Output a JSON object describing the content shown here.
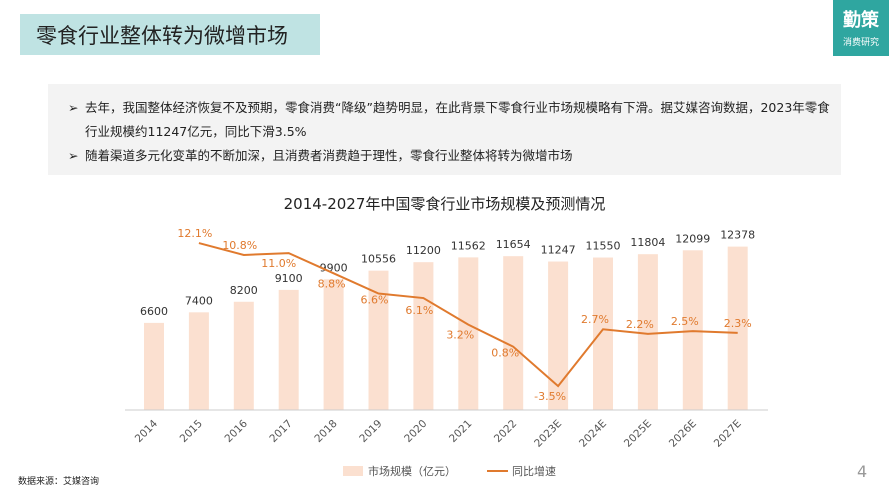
{
  "header": {
    "title": "零食行业整体转为微增市场",
    "logo_main": "勤策",
    "logo_sub": "消费研究"
  },
  "summary": {
    "bullets": [
      "去年，我国整体经济恢复不及预期，零食消费“降级”趋势明显，在此背景下零食行业市场规模略有下滑。据艾媒咨询数据，2023年零食行业规模约11247亿元，同比下滑3.5%",
      "随着渠道多元化变革的不断加深，且消费者消费趋于理性，零食行业整体将转为微增市场"
    ],
    "bullet_icon": "arrow-right-icon"
  },
  "chart_data": {
    "type": "bar+line",
    "title": "2014-2027年中国零食行业市场规模及预测情况",
    "categories": [
      "2014",
      "2015",
      "2016",
      "2017",
      "2018",
      "2019",
      "2020",
      "2021",
      "2022",
      "2023E",
      "2024E",
      "2025E",
      "2026E",
      "2027E"
    ],
    "series": [
      {
        "name": "市场规模（亿元）",
        "type": "bar",
        "color": "#fbe0d0",
        "values": [
          6600,
          7400,
          8200,
          9100,
          9900,
          10556,
          11200,
          11562,
          11654,
          11247,
          11550,
          11804,
          12099,
          12378
        ]
      },
      {
        "name": "同比增速",
        "type": "line",
        "color": "#e07a2e",
        "values": [
          null,
          12.1,
          10.8,
          11.0,
          8.8,
          6.6,
          6.1,
          3.2,
          0.8,
          -3.5,
          2.7,
          2.2,
          2.5,
          2.3
        ],
        "labels": [
          "",
          "12.1%",
          "10.8%",
          "11.0%",
          "8.8%",
          "6.6%",
          "6.1%",
          "3.2%",
          "0.8%",
          "-3.5%",
          "2.7%",
          "2.2%",
          "2.5%",
          "2.3%"
        ]
      }
    ],
    "legend": "bottom"
  },
  "footer": {
    "source": "数据来源：艾媒咨询",
    "page": "4"
  }
}
